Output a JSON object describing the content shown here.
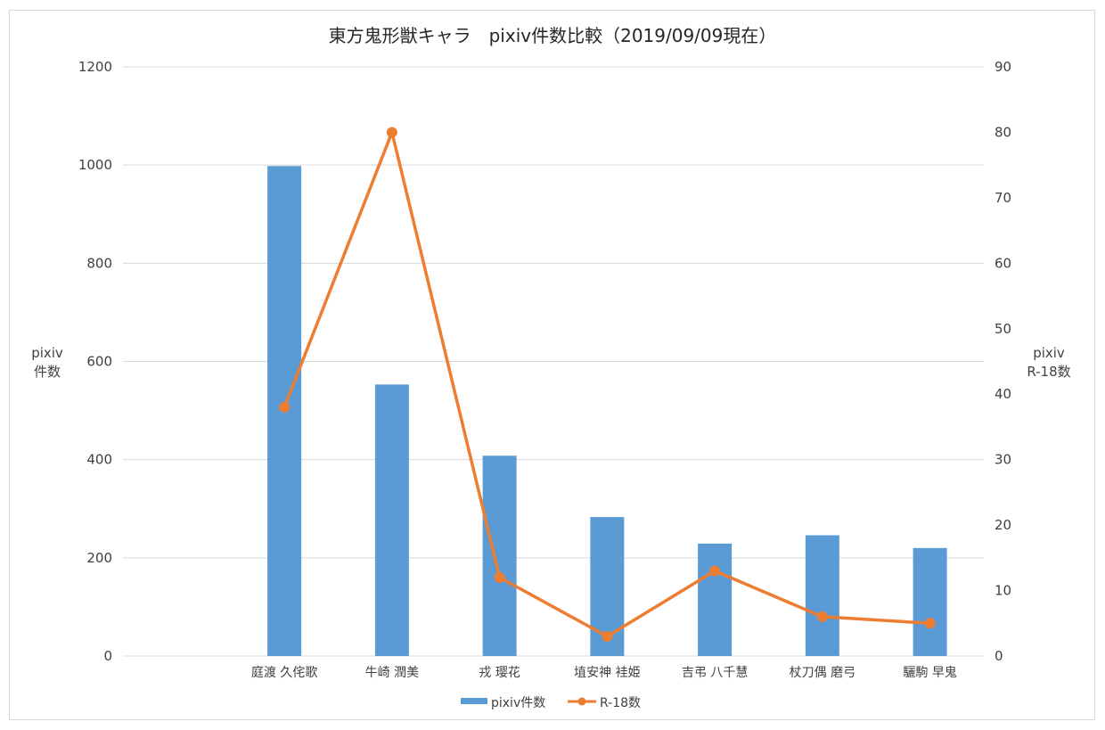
{
  "chart_data": {
    "type": "bar",
    "title": "東方鬼形獣キャラ　pixiv件数比較（2019/09/09現在）",
    "categories": [
      "",
      "庭渡 久侘歌",
      "牛崎 潤美",
      "戎 璎花",
      "埴安神 袿姫",
      "吉弔 八千慧",
      "杖刀偶 磨弓",
      "驪駒 早鬼"
    ],
    "y_left": {
      "label_line1": "pixiv",
      "label_line2": "件数",
      "lim": [
        0,
        1200
      ],
      "ticks": [
        0,
        200,
        400,
        600,
        800,
        1000,
        1200
      ]
    },
    "y_right": {
      "label_line1": "pixiv",
      "label_line2": "R-18数",
      "lim": [
        0,
        90
      ],
      "ticks": [
        0,
        10,
        20,
        30,
        40,
        50,
        60,
        70,
        80,
        90
      ]
    },
    "series": [
      {
        "name": "pixiv件数",
        "type": "bar",
        "axis": "left",
        "color": "#5b9bd5",
        "values": [
          null,
          998,
          553,
          408,
          283,
          229,
          246,
          220
        ]
      },
      {
        "name": "R-18数",
        "type": "line",
        "axis": "right",
        "color": "#ed7d31",
        "values": [
          null,
          38,
          80,
          12,
          3,
          13,
          6,
          5
        ]
      }
    ],
    "grid": true,
    "legend_position": "bottom"
  }
}
